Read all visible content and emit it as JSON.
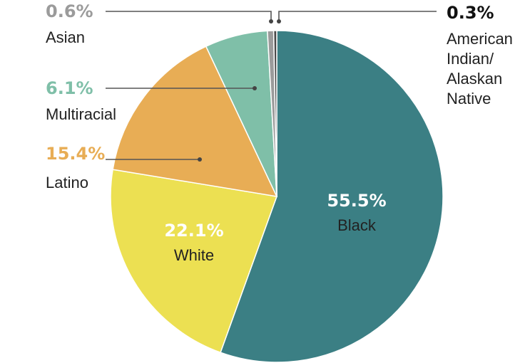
{
  "chart_data": {
    "type": "pie",
    "title": "",
    "slices": [
      {
        "label": "Black",
        "value": 55.5,
        "display": "55.5%",
        "color": "#3b7f84"
      },
      {
        "label": "White",
        "value": 22.1,
        "display": "22.1%",
        "color": "#ece052"
      },
      {
        "label": "Latino",
        "value": 15.4,
        "display": "15.4%",
        "color": "#e8ad55"
      },
      {
        "label": "Multiracial",
        "value": 6.1,
        "display": "6.1%",
        "color": "#7fbfa8"
      },
      {
        "label": "Asian",
        "value": 0.6,
        "display": "0.6%",
        "color": "#9b9b9b"
      },
      {
        "label": "American Indian/ Alaskan Native",
        "label_lines": [
          "American",
          "Indian/",
          "Alaskan",
          "Native"
        ],
        "value": 0.3,
        "display": "0.3%",
        "color": "#4a4a4a"
      }
    ]
  }
}
